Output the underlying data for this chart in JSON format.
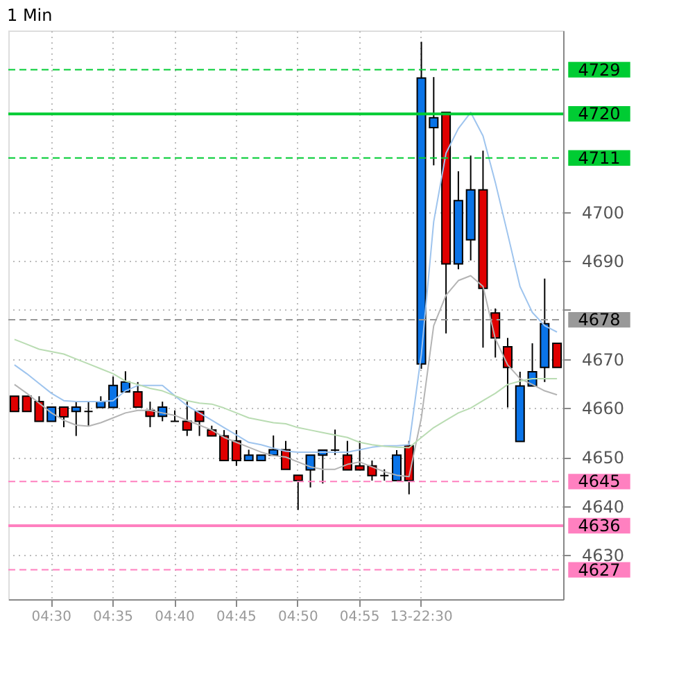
{
  "chart_data": {
    "type": "candlestick",
    "title": "1 Min",
    "categories": [
      null,
      null,
      null,
      "04:30",
      null,
      null,
      null,
      null,
      "04:35",
      null,
      null,
      null,
      null,
      "04:40",
      null,
      null,
      null,
      null,
      "04:45",
      null,
      null,
      null,
      null,
      "04:50",
      null,
      null,
      null,
      null,
      "04:55",
      null,
      null,
      null,
      null,
      "13-22:30",
      null,
      null,
      null,
      null,
      null,
      null,
      null,
      null,
      null,
      null,
      null
    ],
    "ohlc": [
      [
        4662.4,
        4662.4,
        4659.3,
        4659.3
      ],
      [
        4662.4,
        4662.4,
        4659.3,
        4659.3
      ],
      [
        4661.3,
        4662.4,
        4657.3,
        4657.3
      ],
      [
        4657.3,
        4660.2,
        4657.3,
        4660.2
      ],
      [
        4660.2,
        4660.2,
        4656.1,
        4658.2
      ],
      [
        4659.3,
        4661.3,
        4654.3,
        4660.2
      ],
      [
        4659.3,
        4661.3,
        4656.4,
        4659.3
      ],
      [
        4660.1,
        4662.4,
        4660.1,
        4661.3
      ],
      [
        4660.1,
        4666.4,
        4660.1,
        4664.6
      ],
      [
        4663.3,
        4667.5,
        4663.3,
        4665.3
      ],
      [
        4663.3,
        4665.3,
        4660.2,
        4660.2
      ],
      [
        4659.5,
        4661.3,
        4656.1,
        4658.3
      ],
      [
        4658.3,
        4661.3,
        4657.3,
        4660.2
      ],
      [
        4657.3,
        4659.5,
        4657.3,
        4657.3
      ],
      [
        4657.3,
        4661.3,
        4654.3,
        4655.5
      ],
      [
        4659.3,
        4659.3,
        4654.3,
        4657.3
      ],
      [
        4655.5,
        4656.4,
        4654.3,
        4654.3
      ],
      [
        4654.3,
        4655.5,
        4649.3,
        4649.3
      ],
      [
        4653.3,
        4655.5,
        4648.2,
        4649.3
      ],
      [
        4649.3,
        4651.5,
        4649.3,
        4650.4
      ],
      [
        4649.3,
        4650.4,
        4649.3,
        4650.4
      ],
      [
        4650.4,
        4654.4,
        4650.4,
        4651.5
      ],
      [
        4651.5,
        4653.3,
        4647.5,
        4647.5
      ],
      [
        4646.3,
        4646.3,
        4639.2,
        4645.2
      ],
      [
        4647.4,
        4650.4,
        4643.8,
        4650.4
      ],
      [
        4650.4,
        4651.4,
        4644.6,
        4651.4
      ],
      [
        4651.4,
        4655.6,
        4650.4,
        4651.4
      ],
      [
        4650.4,
        4653.3,
        4647.4,
        4647.4
      ],
      [
        4648.2,
        4653.3,
        4647.4,
        4647.4
      ],
      [
        4648.2,
        4649.3,
        4645.2,
        4646.2
      ],
      [
        4646.2,
        4647.5,
        4645.2,
        4646.2
      ],
      [
        4645.2,
        4651.4,
        4645.2,
        4650.4
      ],
      [
        4652.3,
        4653.3,
        4642.4,
        4645.2
      ],
      [
        4669,
        4734.7,
        4668,
        4727.3
      ],
      [
        4717.2,
        4727.5,
        4709.5,
        4719.2
      ],
      [
        4720.3,
        4720.3,
        4675.2,
        4689.4
      ],
      [
        4689.4,
        4708.3,
        4688.3,
        4702.3
      ],
      [
        4694.3,
        4711.5,
        4690.1,
        4704.5
      ],
      [
        4704.5,
        4712.5,
        4672.3,
        4684.4
      ],
      [
        4679.4,
        4680.3,
        4670.3,
        4674.3
      ],
      [
        4672.5,
        4674.3,
        4660.1,
        4668.3
      ],
      [
        4653.2,
        4667.4,
        4653.2,
        4664.5
      ],
      [
        4664.5,
        4673.2,
        4664.5,
        4667.4
      ],
      [
        4668.3,
        4686.4,
        4665.3,
        4677.2
      ],
      [
        4673.2,
        4673.2,
        4668.3,
        4668.3
      ]
    ],
    "colors": [
      "#e00000",
      "#e00000",
      "#e00000",
      "#0a74e8",
      "#e00000",
      "#0a74e8",
      "#000000",
      "#0a74e8",
      "#0a74e8",
      "#0a74e8",
      "#e00000",
      "#e00000",
      "#0a74e8",
      "#000000",
      "#e00000",
      "#e00000",
      "#e00000",
      "#e00000",
      "#e00000",
      "#0a74e8",
      "#0a74e8",
      "#0a74e8",
      "#e00000",
      "#e00000",
      "#0a74e8",
      "#0a74e8",
      "#000000",
      "#e00000",
      "#e00000",
      "#e00000",
      "#000000",
      "#0a74e8",
      "#e00000",
      "#0a74e8",
      "#0a74e8",
      "#e00000",
      "#0a74e8",
      "#0a74e8",
      "#e00000",
      "#e00000",
      "#e00000",
      "#0a74e8",
      "#0a74e8",
      "#0a74e8",
      "#e00000"
    ],
    "series": [
      {
        "type": "line",
        "color": "#9ec4ee",
        "values": [
          4668.8,
          4667,
          4665,
          4663,
          4661.5,
          4661.3,
          4661.3,
          4661.3,
          4661.5,
          4663.5,
          4664.6,
          4664.6,
          4664.6,
          4662.5,
          4660.5,
          4659,
          4657.5,
          4656,
          4654.5,
          4653,
          4652.5,
          4651.8,
          4651.2,
          4651,
          4651,
          4651,
          4651,
          4651,
          4651.5,
          4652,
          4652.3,
          4652.3,
          4652.5,
          4671,
          4698,
          4712,
          4717,
          4720.3,
          4715.5,
          4706,
          4695.5,
          4684.8,
          4679.5,
          4676.8,
          4675.5
        ]
      },
      {
        "type": "line",
        "color": "#b4b4b4",
        "values": [
          4664.8,
          4663,
          4661,
          4659,
          4657.5,
          4656.5,
          4656.3,
          4657,
          4658,
          4659,
          4659.5,
          4659.5,
          4659,
          4658.5,
          4657.5,
          4656.5,
          4655.5,
          4654,
          4653,
          4652,
          4651,
          4650.3,
          4650,
          4649,
          4648,
          4647.5,
          4647.5,
          4648.5,
          4649,
          4648,
          4647,
          4646.3,
          4646,
          4658,
          4676.8,
          4683,
          4686,
          4687,
          4684.8,
          4674.1,
          4668.8,
          4666,
          4664.8,
          4663.5,
          4662.7
        ]
      },
      {
        "type": "line",
        "color": "#b9dcb2",
        "values": [
          4674,
          4673,
          4672,
          4671.5,
          4671,
          4670,
          4669,
          4668,
          4667,
          4665.5,
          4664.8,
          4664,
          4663.5,
          4662.5,
          4661.5,
          4661,
          4660.8,
          4660,
          4659,
          4658,
          4657.5,
          4657,
          4656.8,
          4656,
          4655.5,
          4655,
          4654.5,
          4654,
          4653,
          4652.5,
          4652.2,
          4652,
          4651.9,
          4654,
          4656,
          4657.5,
          4659,
          4660,
          4661.5,
          4663,
          4664.8,
          4665.5,
          4666,
          4666,
          4666
        ]
      }
    ],
    "ref_lines": [
      {
        "axis": "y",
        "value": 4729,
        "label": "4729",
        "color": "#00cc33",
        "line_style": "dashed"
      },
      {
        "axis": "y",
        "value": 4720,
        "label": "4720",
        "color": "#00cc33",
        "line_style": "solid"
      },
      {
        "axis": "y",
        "value": 4711,
        "label": "4711",
        "color": "#00cc33",
        "line_style": "dashed"
      },
      {
        "axis": "y",
        "value": 4678,
        "label": "4678",
        "color": "#999999",
        "line_style": "dashed"
      },
      {
        "axis": "y",
        "value": 4645,
        "label": "4645",
        "color": "#ff80c0",
        "line_style": "dashed"
      },
      {
        "axis": "y",
        "value": 4636,
        "label": "4636",
        "color": "#ff80c0",
        "line_style": "solid"
      },
      {
        "axis": "y",
        "value": 4627,
        "label": "4627",
        "color": "#ff80c0",
        "line_style": "dashed"
      }
    ],
    "ylim": [
      4621,
      4737
    ],
    "yticks": [
      4630,
      4640,
      4650,
      4660,
      4670,
      {
        "value": 4680,
        "label": null
      },
      4690,
      4700
    ],
    "grid": true
  }
}
